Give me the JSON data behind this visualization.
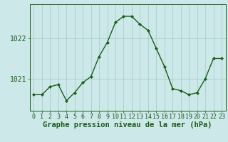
{
  "hours": [
    0,
    1,
    2,
    3,
    4,
    5,
    6,
    7,
    8,
    9,
    10,
    11,
    12,
    13,
    14,
    15,
    16,
    17,
    18,
    19,
    20,
    21,
    22,
    23
  ],
  "pressure": [
    1020.6,
    1020.6,
    1020.8,
    1020.85,
    1020.45,
    1020.65,
    1020.9,
    1021.05,
    1021.55,
    1021.9,
    1022.4,
    1022.55,
    1022.55,
    1022.35,
    1022.2,
    1021.75,
    1021.3,
    1020.75,
    1020.7,
    1020.6,
    1020.65,
    1021.0,
    1021.5,
    1021.5
  ],
  "bg_color": "#cce8e8",
  "line_color": "#1a5c1a",
  "marker_color": "#1a5c1a",
  "grid_color": "#aacece",
  "axis_label_color": "#1a5c1a",
  "tick_color": "#1a5c1a",
  "xlabel": "Graphe pression niveau de la mer (hPa)",
  "ylabel_ticks": [
    1021,
    1022
  ],
  "ylim": [
    1020.2,
    1022.85
  ],
  "xlim": [
    -0.5,
    23.5
  ],
  "spine_color": "#1a5c1a",
  "tick_fontsize": 6,
  "xlabel_fontsize": 7.5
}
